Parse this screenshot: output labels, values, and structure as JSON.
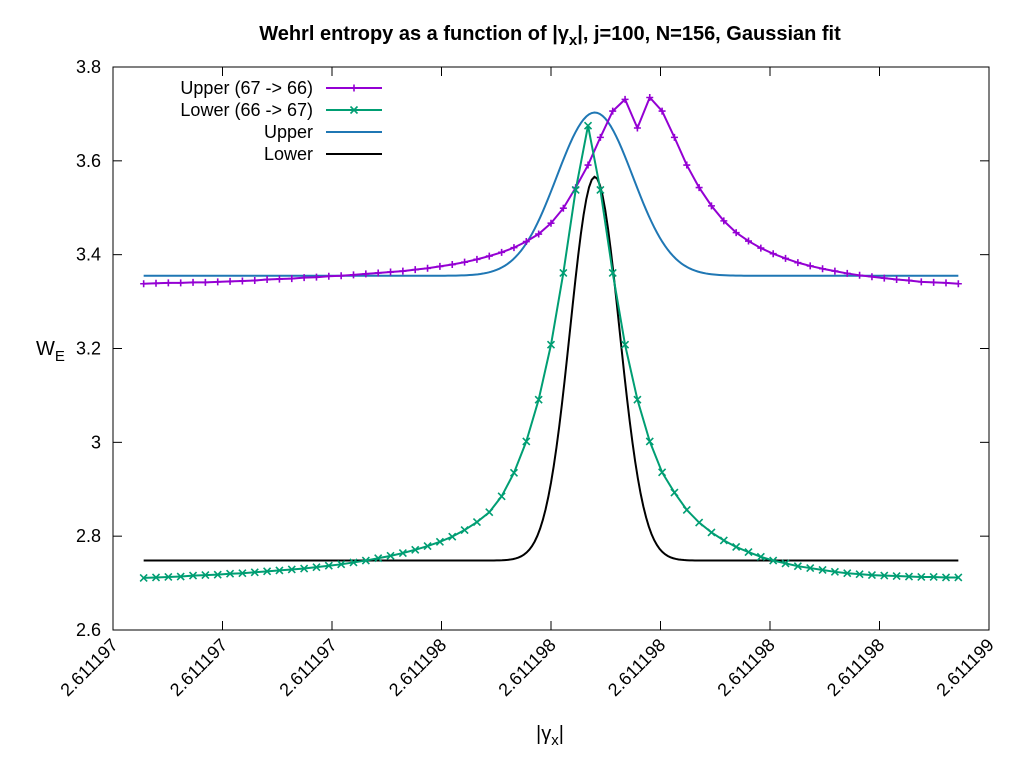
{
  "chart_data": {
    "type": "line",
    "title": "Wehrl entropy as a function of |γx|,  j=100, N=156, Gaussian fit",
    "title_parts": {
      "prefix": "Wehrl entropy as a function of |γ",
      "sub": "x",
      "suffix": "|,  j=100, N=156, Gaussian fit"
    },
    "xlabel": "|γx|",
    "xlabel_parts": {
      "prefix": "|γ",
      "sub": "x",
      "suffix": "|"
    },
    "ylabel": "WE",
    "ylabel_parts": {
      "prefix": "W",
      "sub": "E"
    },
    "ylim": [
      2.6,
      3.8
    ],
    "xlim": [
      2.611197,
      2.611199
    ],
    "yticks": [
      "2.6",
      "2.8",
      "3",
      "3.2",
      "3.4",
      "3.6",
      "3.8"
    ],
    "xticks": [
      "2.611197",
      "2.611197",
      "2.611197",
      "2.611198",
      "2.611198",
      "2.611198",
      "2.611198",
      "2.611198",
      "2.611199"
    ],
    "legend_position": "top-left",
    "grid": false,
    "colors": {
      "upper_data": "#9400d3",
      "lower_data": "#009e73",
      "upper_fit": "#1f77b4",
      "lower_fit": "#000000"
    },
    "series": [
      {
        "name": "Upper (67 -> 66)",
        "marker": "plus",
        "x_start": 2.61119707,
        "x_end": 2.61119893,
        "n": 67,
        "values": [
          3.338,
          3.339,
          3.34,
          3.34,
          3.341,
          3.341,
          3.342,
          3.343,
          3.344,
          3.345,
          3.347,
          3.348,
          3.349,
          3.351,
          3.352,
          3.354,
          3.355,
          3.357,
          3.359,
          3.361,
          3.363,
          3.365,
          3.368,
          3.371,
          3.375,
          3.379,
          3.384,
          3.39,
          3.397,
          3.405,
          3.415,
          3.428,
          3.444,
          3.467,
          3.499,
          3.543,
          3.591,
          3.65,
          3.706,
          3.731,
          3.67,
          3.735,
          3.706,
          3.65,
          3.591,
          3.543,
          3.504,
          3.472,
          3.447,
          3.429,
          3.414,
          3.402,
          3.392,
          3.383,
          3.376,
          3.37,
          3.365,
          3.36,
          3.356,
          3.353,
          3.35,
          3.347,
          3.345,
          3.342,
          3.341,
          3.34,
          3.338
        ]
      },
      {
        "name": "Lower (66 -> 67)",
        "marker": "x",
        "x_start": 2.61119707,
        "x_end": 2.61119893,
        "n": 67,
        "values": [
          2.711,
          2.712,
          2.713,
          2.714,
          2.716,
          2.717,
          2.718,
          2.72,
          2.721,
          2.723,
          2.725,
          2.727,
          2.729,
          2.731,
          2.734,
          2.737,
          2.74,
          2.744,
          2.748,
          2.753,
          2.758,
          2.764,
          2.771,
          2.779,
          2.788,
          2.799,
          2.813,
          2.83,
          2.851,
          2.885,
          2.935,
          3.002,
          3.091,
          3.208,
          3.361,
          3.538,
          3.675,
          3.538,
          3.361,
          3.208,
          3.091,
          3.002,
          2.936,
          2.893,
          2.856,
          2.829,
          2.808,
          2.791,
          2.777,
          2.766,
          2.756,
          2.748,
          2.742,
          2.736,
          2.732,
          2.728,
          2.724,
          2.721,
          2.719,
          2.717,
          2.716,
          2.715,
          2.714,
          2.713,
          2.713,
          2.712,
          2.712
        ]
      },
      {
        "name": "Upper",
        "marker": "none",
        "fit": {
          "amplitude": 0.348,
          "baseline": 3.355,
          "center": 2.6111981,
          "sigma": 8.7e-08
        }
      },
      {
        "name": "Lower",
        "marker": "none",
        "fit": {
          "amplitude": 0.818,
          "baseline": 2.748,
          "center": 2.6111981,
          "sigma": 5.6e-08
        }
      }
    ]
  }
}
